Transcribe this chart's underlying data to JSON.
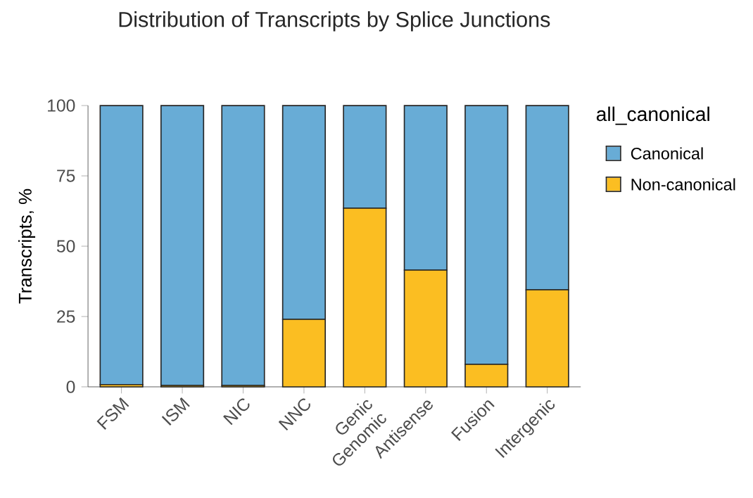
{
  "chart_data": {
    "type": "bar",
    "stacked": true,
    "title": "Distribution of Transcripts by Splice Junctions",
    "ylabel": "Transcripts, %",
    "legend_title": "all_canonical",
    "categories": [
      "FSM",
      "ISM",
      "NIC",
      "NNC",
      "Genic Genomic",
      "Antisense",
      "Fusion",
      "Intergenic"
    ],
    "series": [
      {
        "name": "Non-canonical",
        "color": "#fbbe22",
        "values": [
          0.8,
          0.5,
          0.5,
          24,
          63.5,
          41.5,
          8,
          34.5
        ]
      },
      {
        "name": "Canonical",
        "color": "#68acd6",
        "values": [
          99.2,
          99.5,
          99.5,
          76,
          36.5,
          58.5,
          92,
          65.5
        ]
      }
    ],
    "ylim": [
      0,
      100
    ],
    "yticks": [
      0,
      25,
      50,
      75,
      100
    ],
    "grid": false,
    "legend": "right"
  }
}
